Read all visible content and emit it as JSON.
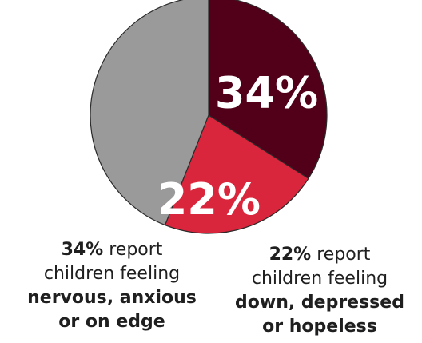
{
  "chart_data": {
    "type": "pie",
    "slices": [
      {
        "label": "nervous, anxious or on edge",
        "value": 34,
        "display": "34%",
        "color": "#52001a"
      },
      {
        "label": "down, depressed or hopeless",
        "value": 22,
        "display": "22%",
        "color": "#d9263c"
      },
      {
        "label": "",
        "value": 44,
        "display": "",
        "color": "#9a9a9b"
      }
    ],
    "start_angle_deg": 0,
    "direction": "clockwise"
  },
  "captions": {
    "left": {
      "pct": "34%",
      "rest": " report",
      "line2": "children feeling",
      "emph1": "nervous, anxious",
      "emph2": "or on edge"
    },
    "right": {
      "pct": "22%",
      "rest": " report",
      "line2": "children feeling",
      "emph1": "down, depressed",
      "emph2": "or hopeless"
    }
  }
}
